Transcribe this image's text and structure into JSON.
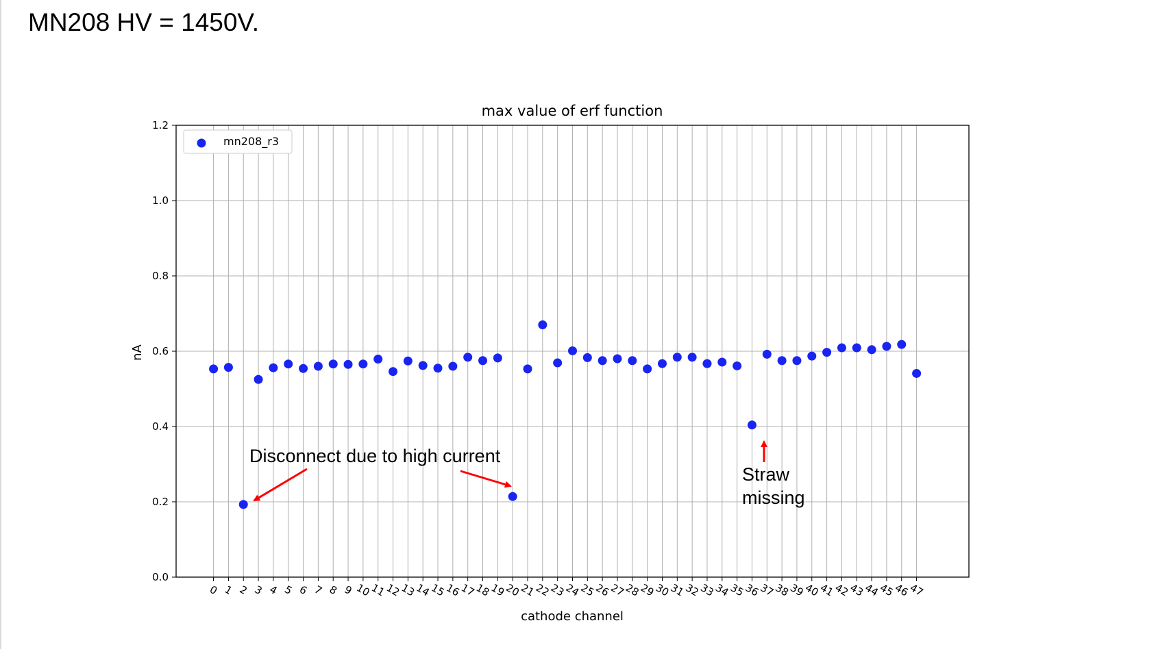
{
  "slide": {
    "title": "MN208 HV = 1450V."
  },
  "chart_data": {
    "type": "scatter",
    "title": "max value of erf function",
    "xlabel": "cathode channel",
    "ylabel": "nA",
    "x_ticks": [
      "0",
      "1",
      "2",
      "3",
      "4",
      "5",
      "6",
      "7",
      "8",
      "9",
      "10",
      "11",
      "12",
      "13",
      "14",
      "15",
      "16",
      "17",
      "18",
      "19",
      "20",
      "21",
      "22",
      "23",
      "24",
      "25",
      "26",
      "27",
      "28",
      "29",
      "30",
      "31",
      "32",
      "33",
      "34",
      "35",
      "36",
      "37",
      "38",
      "39",
      "40",
      "41",
      "42",
      "43",
      "44",
      "45",
      "46",
      "47"
    ],
    "y_ticks": [
      "0.0",
      "0.2",
      "0.4",
      "0.6",
      "0.8",
      "1.0",
      "1.2"
    ],
    "ylim": [
      0,
      1.2
    ],
    "xlim": [
      -2.5,
      50.5
    ],
    "grid": true,
    "legend_position": "top-left",
    "series": [
      {
        "name": "mn208_r3",
        "color": "#1a24f0",
        "x": [
          0,
          1,
          2,
          3,
          4,
          5,
          6,
          7,
          8,
          9,
          10,
          11,
          12,
          13,
          14,
          15,
          16,
          17,
          18,
          19,
          20,
          21,
          22,
          23,
          24,
          25,
          26,
          27,
          28,
          29,
          30,
          31,
          32,
          33,
          34,
          35,
          36,
          37,
          38,
          39,
          40,
          41,
          42,
          43,
          44,
          45,
          46,
          47
        ],
        "y": [
          0.553,
          0.557,
          0.193,
          0.525,
          0.556,
          0.566,
          0.554,
          0.56,
          0.566,
          0.565,
          0.566,
          0.579,
          0.546,
          0.574,
          0.562,
          0.555,
          0.56,
          0.584,
          0.575,
          0.582,
          0.214,
          0.553,
          0.67,
          0.569,
          0.601,
          0.583,
          0.575,
          0.58,
          0.575,
          0.553,
          0.567,
          0.584,
          0.584,
          0.567,
          0.571,
          0.561,
          0.404,
          0.592,
          0.575,
          0.575,
          0.587,
          0.597,
          0.609,
          0.609,
          0.604,
          0.613,
          0.618,
          0.541
        ]
      }
    ],
    "annotations": [
      {
        "text": "Disconnect due to high current",
        "targets_x": [
          2,
          20
        ]
      },
      {
        "text_lines": [
          "Straw",
          "missing"
        ],
        "target_x": 36
      }
    ],
    "arrow_color": "#ff0000"
  }
}
